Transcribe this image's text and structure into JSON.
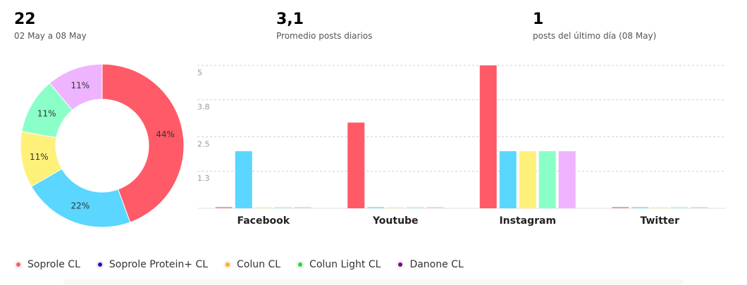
{
  "stats": [
    {
      "value": "22",
      "label": "02 May a 08 May"
    },
    {
      "value": "3,1",
      "label": "Promedio posts diarios"
    },
    {
      "value": "1",
      "label": "posts del último día (08 May)"
    }
  ],
  "colors": {
    "Soprole CL": "#ff5a67",
    "Soprole Protein+ CL": "#5ad6ff",
    "Colun CL": "#fff07a",
    "Colun Light CL": "#8affc8",
    "Danone CL": "#eeb4ff"
  },
  "legend": [
    {
      "label": "Soprole CL",
      "color": "#ff5a67"
    },
    {
      "label": "Soprole Protein+ CL",
      "color": "#3300cc"
    },
    {
      "label": "Colun CL",
      "color": "#ffb300"
    },
    {
      "label": "Colun Light CL",
      "color": "#22dd33"
    },
    {
      "label": "Danone CL",
      "color": "#7a0088"
    }
  ],
  "chart_data": [
    {
      "type": "pie",
      "variant": "donut",
      "labels": [
        "Soprole CL",
        "Soprole Protein+ CL",
        "Colun CL",
        "Colun Light CL",
        "Danone CL"
      ],
      "values": [
        44,
        22,
        11,
        11,
        11
      ],
      "data_labels": [
        "44%",
        "22%",
        "11%",
        "11%",
        "11%"
      ]
    },
    {
      "type": "bar",
      "categories": [
        "Facebook",
        "Youtube",
        "Instagram",
        "Twitter"
      ],
      "series": [
        {
          "name": "Soprole CL",
          "values": [
            0,
            3,
            5,
            0
          ]
        },
        {
          "name": "Soprole Protein+ CL",
          "values": [
            2,
            0,
            2,
            0
          ]
        },
        {
          "name": "Colun CL",
          "values": [
            0,
            0,
            2,
            0
          ]
        },
        {
          "name": "Colun Light CL",
          "values": [
            0,
            0,
            2,
            0
          ]
        },
        {
          "name": "Danone CL",
          "values": [
            0,
            0,
            2,
            0
          ]
        }
      ],
      "yticks": [
        "1.3",
        "2.5",
        "3.8",
        "5"
      ],
      "ylim": [
        0,
        5
      ],
      "grid": true
    }
  ]
}
